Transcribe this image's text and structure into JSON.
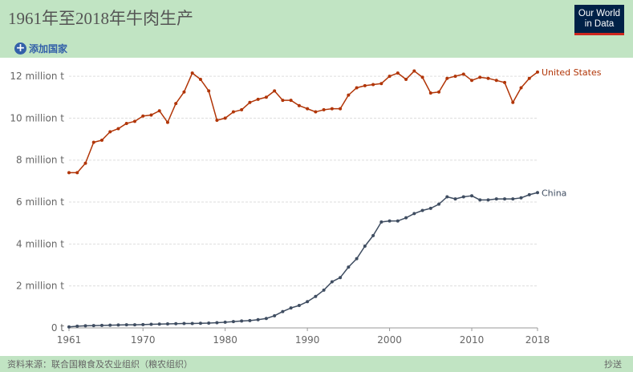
{
  "header": {
    "title": "1961年至2018年牛肉生产",
    "logo_line1": "Our World",
    "logo_line2": "in Data",
    "add_country_label": "添加国家",
    "add_country_icon": "plus-circle-icon"
  },
  "footer": {
    "source": "资料来源：联合国粮食及农业组织（粮农组织）",
    "share_label": "抄送"
  },
  "colors": {
    "background": "#c1e4c3",
    "accent": "#3360a9",
    "united_states": "#b13507",
    "china": "#3f4d61"
  },
  "chart_data": {
    "type": "line",
    "x": [
      1961,
      1962,
      1963,
      1964,
      1965,
      1966,
      1967,
      1968,
      1969,
      1970,
      1971,
      1972,
      1973,
      1974,
      1975,
      1976,
      1977,
      1978,
      1979,
      1980,
      1981,
      1982,
      1983,
      1984,
      1985,
      1986,
      1987,
      1988,
      1989,
      1990,
      1991,
      1992,
      1993,
      1994,
      1995,
      1996,
      1997,
      1998,
      1999,
      2000,
      2001,
      2002,
      2003,
      2004,
      2005,
      2006,
      2007,
      2008,
      2009,
      2010,
      2011,
      2012,
      2013,
      2014,
      2015,
      2016,
      2017,
      2018
    ],
    "series": [
      {
        "name": "United States",
        "color": "#b13507",
        "values": [
          7.4,
          7.4,
          7.85,
          8.85,
          8.95,
          9.35,
          9.5,
          9.75,
          9.85,
          10.1,
          10.15,
          10.35,
          9.8,
          10.7,
          11.25,
          12.15,
          11.85,
          11.3,
          9.9,
          10.0,
          10.3,
          10.4,
          10.75,
          10.9,
          11.0,
          11.3,
          10.85,
          10.85,
          10.6,
          10.45,
          10.3,
          10.4,
          10.45,
          10.45,
          11.1,
          11.45,
          11.55,
          11.6,
          11.65,
          12.0,
          12.15,
          11.85,
          12.25,
          11.95,
          11.2,
          11.25,
          11.9,
          12.0,
          12.1,
          11.8,
          11.95,
          11.9,
          11.8,
          11.7,
          10.75,
          11.45,
          11.9,
          12.2
        ]
      },
      {
        "name": "China",
        "color": "#3f4d61",
        "values": [
          0.05,
          0.08,
          0.1,
          0.11,
          0.12,
          0.13,
          0.14,
          0.15,
          0.15,
          0.16,
          0.17,
          0.18,
          0.19,
          0.2,
          0.21,
          0.21,
          0.22,
          0.23,
          0.25,
          0.27,
          0.3,
          0.33,
          0.35,
          0.39,
          0.45,
          0.58,
          0.78,
          0.95,
          1.07,
          1.25,
          1.5,
          1.8,
          2.2,
          2.4,
          2.9,
          3.3,
          3.9,
          4.4,
          5.05,
          5.1,
          5.1,
          5.25,
          5.45,
          5.6,
          5.7,
          5.9,
          6.25,
          6.15,
          6.25,
          6.3,
          6.1,
          6.1,
          6.15,
          6.15,
          6.15,
          6.2,
          6.35,
          6.45
        ]
      }
    ],
    "ylim": [
      0,
      12.5
    ],
    "yticks": [
      0,
      2,
      4,
      6,
      8,
      10,
      12
    ],
    "ytick_labels": [
      "0 t",
      "2 million t",
      "4 million t",
      "6 million t",
      "8 million t",
      "10 million t",
      "12 million t"
    ],
    "xticks": [
      1961,
      1970,
      1980,
      1990,
      2000,
      2010,
      2018
    ],
    "xtick_labels": [
      "1961",
      "1970",
      "1980",
      "1990",
      "2000",
      "2010",
      "2018"
    ],
    "grid": "horizontal",
    "legend": "end-of-line"
  }
}
